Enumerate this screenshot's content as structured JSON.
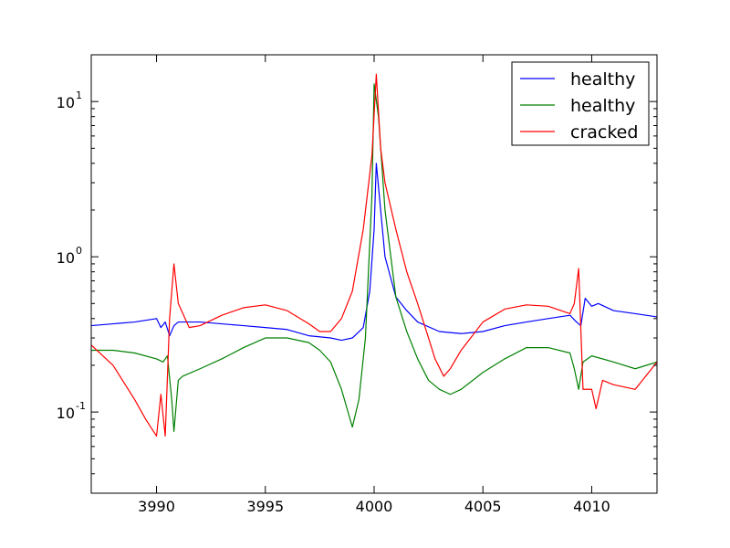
{
  "chart_data": {
    "type": "line",
    "title": "",
    "xlabel": "",
    "ylabel": "",
    "xlim": [
      3987,
      4013
    ],
    "ylim": [
      0.03,
      20
    ],
    "yscale": "log",
    "grid": false,
    "legend_placement": "top-right",
    "x_ticks": [
      {
        "value": 3990,
        "label": "3990"
      },
      {
        "value": 3995,
        "label": "3995"
      },
      {
        "value": 4000,
        "label": "4000"
      },
      {
        "value": 4005,
        "label": "4005"
      },
      {
        "value": 4010,
        "label": "4010"
      }
    ],
    "y_ticks": [
      {
        "value": 0.1,
        "base": "10",
        "exp": "-1"
      },
      {
        "value": 1,
        "base": "10",
        "exp": "0"
      },
      {
        "value": 10,
        "base": "10",
        "exp": "1"
      }
    ],
    "series": [
      {
        "name": "healthy",
        "color": "#0000ff",
        "x": [
          3987,
          3988,
          3989,
          3989.5,
          3990,
          3990.2,
          3990.4,
          3990.6,
          3990.8,
          3991,
          3991.5,
          3992,
          3993,
          3994,
          3995,
          3996,
          3997,
          3998,
          3998.5,
          3999,
          3999.5,
          3999.8,
          4000,
          4000.1,
          4000.3,
          4000.5,
          4001,
          4001.5,
          4002,
          4003,
          4004,
          4005,
          4006,
          4007,
          4008,
          4009,
          4009.3,
          4009.5,
          4009.7,
          4010,
          4010.3,
          4011,
          4012,
          4013
        ],
        "y": [
          0.36,
          0.37,
          0.38,
          0.39,
          0.4,
          0.35,
          0.38,
          0.31,
          0.36,
          0.38,
          0.38,
          0.38,
          0.37,
          0.36,
          0.35,
          0.34,
          0.31,
          0.3,
          0.29,
          0.3,
          0.35,
          0.6,
          1.5,
          4.0,
          2.0,
          1.0,
          0.55,
          0.45,
          0.38,
          0.33,
          0.32,
          0.33,
          0.36,
          0.38,
          0.4,
          0.42,
          0.38,
          0.36,
          0.54,
          0.48,
          0.5,
          0.45,
          0.43,
          0.41
        ]
      },
      {
        "name": "healthy",
        "color": "#008000",
        "x": [
          3987,
          3988,
          3989,
          3990,
          3990.3,
          3990.5,
          3990.7,
          3990.8,
          3991,
          3991.2,
          3992,
          3993,
          3994,
          3995,
          3996,
          3997,
          3997.5,
          3998,
          3998.5,
          3998.8,
          3999,
          3999.3,
          3999.6,
          3999.9,
          4000,
          4000.2,
          4000.5,
          4001,
          4001.5,
          4002,
          4002.5,
          4003,
          4003.5,
          4004,
          4005,
          4006,
          4007,
          4008,
          4009,
          4009.2,
          4009.4,
          4009.6,
          4010,
          4011,
          4012,
          4013
        ],
        "y": [
          0.25,
          0.25,
          0.24,
          0.22,
          0.21,
          0.23,
          0.12,
          0.075,
          0.16,
          0.17,
          0.19,
          0.22,
          0.26,
          0.3,
          0.3,
          0.28,
          0.25,
          0.21,
          0.14,
          0.1,
          0.08,
          0.12,
          0.3,
          2.5,
          13,
          8,
          2.0,
          0.55,
          0.33,
          0.22,
          0.16,
          0.14,
          0.13,
          0.14,
          0.18,
          0.22,
          0.26,
          0.26,
          0.24,
          0.19,
          0.14,
          0.21,
          0.23,
          0.21,
          0.19,
          0.21
        ]
      },
      {
        "name": "cracked",
        "color": "#ff0000",
        "x": [
          3987,
          3988,
          3989,
          3989.5,
          3990,
          3990.2,
          3990.4,
          3990.6,
          3990.8,
          3991,
          3991.5,
          3992,
          3993,
          3994,
          3995,
          3996,
          3997,
          3997.5,
          3998,
          3998.5,
          3999,
          3999.5,
          3999.9,
          4000.1,
          4000.3,
          4000.5,
          4001,
          4001.5,
          4002,
          4002.5,
          4002.8,
          4003.2,
          4003.5,
          4004,
          4005,
          4006,
          4007,
          4008,
          4009,
          4009.2,
          4009.4,
          4009.6,
          4010,
          4010.2,
          4010.5,
          4011,
          4012,
          4013
        ],
        "y": [
          0.27,
          0.2,
          0.12,
          0.09,
          0.07,
          0.13,
          0.07,
          0.4,
          0.9,
          0.5,
          0.35,
          0.36,
          0.42,
          0.47,
          0.49,
          0.45,
          0.37,
          0.33,
          0.33,
          0.4,
          0.6,
          1.5,
          4.5,
          15,
          5.0,
          3.0,
          1.5,
          0.8,
          0.5,
          0.3,
          0.22,
          0.17,
          0.19,
          0.25,
          0.38,
          0.46,
          0.49,
          0.48,
          0.43,
          0.5,
          0.84,
          0.14,
          0.14,
          0.105,
          0.16,
          0.15,
          0.14,
          0.21
        ]
      }
    ]
  }
}
